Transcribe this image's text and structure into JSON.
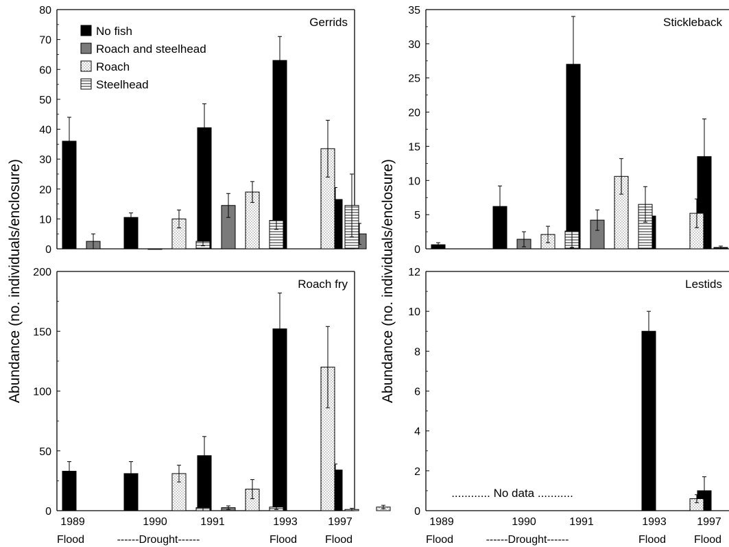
{
  "figure": {
    "ylabel_left": "Abundance (no. individuals/enclosure)",
    "ylabel_right": "Abundance (no. individuals/enclosure)",
    "legend": [
      "No fish",
      "Roach and steelhead",
      "Roach",
      "Steelhead"
    ]
  },
  "chart_data": [
    {
      "type": "bar",
      "title": "Gerrids",
      "ylim": [
        0,
        80
      ],
      "yticks": [
        0,
        10,
        20,
        30,
        40,
        50,
        60,
        70,
        80
      ],
      "legend_position": "top-left",
      "categories": [
        "1989",
        "1990",
        "1991",
        "1993",
        "1997"
      ],
      "category_notes": [
        "Flood",
        "------Drought------",
        "",
        "Flood",
        "Flood"
      ],
      "series": [
        {
          "name": "No fish",
          "values": [
            36,
            10.5,
            40.5,
            63,
            16.5
          ],
          "errors": [
            8,
            1.5,
            8,
            8,
            4
          ]
        },
        {
          "name": "Roach and steelhead",
          "values": [
            2.5,
            0,
            14.5,
            null,
            5
          ],
          "errors": [
            2.5,
            0,
            4,
            null,
            3.5
          ]
        },
        {
          "name": "Roach",
          "values": [
            null,
            10,
            19,
            33.5,
            null
          ],
          "errors": [
            null,
            3,
            3.5,
            9.5,
            null
          ]
        },
        {
          "name": "Steelhead",
          "values": [
            null,
            2.5,
            9.5,
            14.5,
            null
          ],
          "errors": [
            null,
            1.5,
            3,
            10.5,
            null
          ]
        }
      ]
    },
    {
      "type": "bar",
      "title": "Stickleback",
      "ylim": [
        0,
        35
      ],
      "yticks": [
        0,
        5,
        10,
        15,
        20,
        25,
        30,
        35
      ],
      "categories": [
        "1989",
        "1990",
        "1991",
        "1993",
        "1997"
      ],
      "category_notes": [
        "Flood",
        "------Drought------",
        "",
        "Flood",
        "Flood"
      ],
      "series": [
        {
          "name": "No fish",
          "values": [
            0.6,
            6.2,
            27,
            4.8,
            13.5
          ],
          "errors": [
            0.3,
            3,
            7,
            1,
            5.5
          ]
        },
        {
          "name": "Roach and steelhead",
          "values": [
            null,
            1.4,
            4.2,
            null,
            null
          ],
          "errors": [
            null,
            1.1,
            1.5,
            null,
            null
          ]
        },
        {
          "name": "Roach",
          "values": [
            null,
            2.1,
            10.6,
            5.2,
            2.2
          ],
          "errors": [
            null,
            1.2,
            2.6,
            2.1,
            0.8
          ]
        },
        {
          "name": "Steelhead",
          "values": [
            null,
            2.6,
            6.5,
            0.2,
            null
          ],
          "errors": [
            null,
            2.4,
            2.6,
            0.2,
            null
          ]
        }
      ]
    },
    {
      "type": "bar",
      "title": "Roach fry",
      "ylim": [
        0,
        200
      ],
      "yticks": [
        0,
        50,
        100,
        150,
        200
      ],
      "categories": [
        "1989",
        "1990",
        "1991",
        "1993",
        "1997"
      ],
      "category_notes": [
        "Flood",
        "------Drought------",
        "",
        "Flood",
        "Flood"
      ],
      "series": [
        {
          "name": "No fish",
          "values": [
            33,
            31,
            46,
            152,
            34
          ],
          "errors": [
            8,
            10,
            16,
            30,
            5
          ]
        },
        {
          "name": "Roach and steelhead",
          "values": [
            null,
            null,
            2.5,
            null,
            null
          ],
          "errors": [
            null,
            null,
            1.5,
            null,
            null
          ]
        },
        {
          "name": "Roach",
          "values": [
            null,
            31,
            18,
            120,
            3
          ],
          "errors": [
            null,
            7,
            8,
            34,
            1.5
          ]
        },
        {
          "name": "Steelhead",
          "values": [
            null,
            2.5,
            3,
            1,
            null
          ],
          "errors": [
            null,
            2.5,
            2,
            1,
            null
          ]
        }
      ]
    },
    {
      "type": "bar",
      "title": "Lestids",
      "ylim": [
        0,
        12
      ],
      "yticks": [
        0,
        2,
        4,
        6,
        8,
        10,
        12
      ],
      "annotation": "............ No data ...........",
      "categories": [
        "1989",
        "1990",
        "1991",
        "1993",
        "1997"
      ],
      "category_notes": [
        "Flood",
        "------Drought------",
        "",
        "Flood",
        "Flood"
      ],
      "series": [
        {
          "name": "No fish",
          "values": [
            null,
            null,
            null,
            9,
            1
          ],
          "errors": [
            null,
            null,
            null,
            1,
            0.7
          ]
        },
        {
          "name": "Roach",
          "values": [
            null,
            null,
            null,
            0.6,
            null
          ],
          "errors": [
            null,
            null,
            null,
            0.2,
            null
          ]
        }
      ]
    }
  ]
}
